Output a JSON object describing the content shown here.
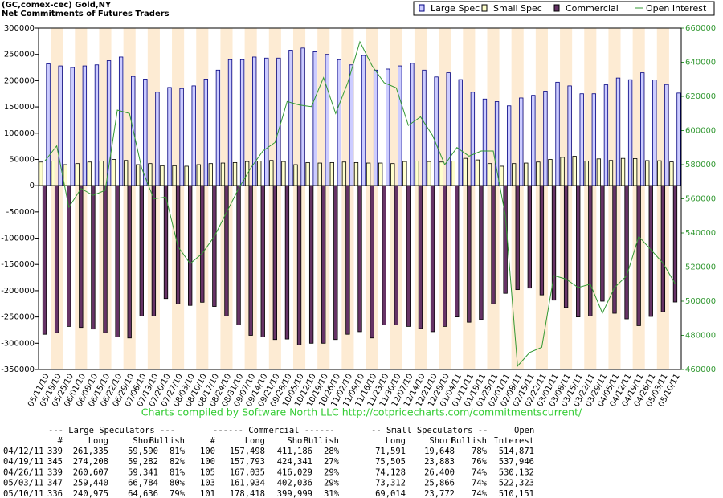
{
  "chart_data": {
    "type": "bar",
    "title": "(GC,comex-cec) Gold,NY",
    "subtitle": "Net Commitments of Futures Traders",
    "annotation": "Charts compiled by Software North LLC  http://cotpricecharts.com/commitmentscurrent/",
    "categories": [
      "05/11/10",
      "05/18/10",
      "05/25/10",
      "06/01/10",
      "06/08/10",
      "06/15/10",
      "06/22/10",
      "06/29/10",
      "07/06/10",
      "07/13/10",
      "07/20/10",
      "07/27/10",
      "08/03/10",
      "08/10/10",
      "08/17/10",
      "08/24/10",
      "08/31/10",
      "09/07/10",
      "09/14/10",
      "09/21/10",
      "09/28/10",
      "10/05/10",
      "10/12/10",
      "10/19/10",
      "10/26/10",
      "11/02/10",
      "11/09/10",
      "11/16/10",
      "11/23/10",
      "11/30/10",
      "12/07/10",
      "12/14/10",
      "12/21/10",
      "12/28/10",
      "01/04/11",
      "01/11/11",
      "01/18/11",
      "01/25/11",
      "02/01/11",
      "02/08/11",
      "02/15/11",
      "02/22/11",
      "03/01/11",
      "03/08/11",
      "03/15/11",
      "03/22/11",
      "03/29/11",
      "04/05/11",
      "04/12/11",
      "04/19/11",
      "04/26/11",
      "05/03/11",
      "05/10/11"
    ],
    "series": [
      {
        "name": "Large Spec",
        "color": "#ccccff",
        "edgecolor": "#000080",
        "values": [
          232000,
          228000,
          225000,
          228000,
          230000,
          238000,
          245000,
          208000,
          203000,
          178000,
          187000,
          185000,
          190000,
          203000,
          220000,
          240000,
          240000,
          245000,
          243000,
          243000,
          258000,
          262000,
          255000,
          250000,
          240000,
          230000,
          248000,
          220000,
          222000,
          228000,
          233000,
          220000,
          207000,
          215000,
          202000,
          178000,
          165000,
          160000,
          152000,
          167000,
          172000,
          180000,
          197000,
          190000,
          175000,
          175000,
          192000,
          205000,
          201745,
          214926,
          201266,
          192656,
          176339
        ]
      },
      {
        "name": "Small Spec",
        "color": "#ffffcc",
        "edgecolor": "#000000",
        "values": [
          45000,
          47000,
          40000,
          42000,
          45000,
          47000,
          50000,
          48000,
          40000,
          42000,
          38000,
          38000,
          37000,
          40000,
          42000,
          43000,
          44000,
          46000,
          47000,
          48000,
          46000,
          40000,
          44000,
          43000,
          44000,
          45000,
          44000,
          43000,
          43000,
          42000,
          46000,
          47000,
          46000,
          45000,
          47000,
          52000,
          49000,
          42000,
          37000,
          42000,
          43000,
          45000,
          50000,
          54000,
          56000,
          47000,
          51000,
          48000,
          51943,
          51622,
          47728,
          47446,
          45242
        ]
      },
      {
        "name": "Commercial",
        "color": "#663366",
        "edgecolor": "#000000",
        "values": [
          -283000,
          -280000,
          -268000,
          -270000,
          -273000,
          -280000,
          -288000,
          -290000,
          -248000,
          -248000,
          -215000,
          -225000,
          -228000,
          -222000,
          -230000,
          -248000,
          -265000,
          -285000,
          -288000,
          -293000,
          -292000,
          -303000,
          -300000,
          -300000,
          -293000,
          -283000,
          -278000,
          -290000,
          -265000,
          -265000,
          -268000,
          -272000,
          -278000,
          -268000,
          -250000,
          -260000,
          -255000,
          -225000,
          -205000,
          -198000,
          -195000,
          -208000,
          -218000,
          -232000,
          -250000,
          -248000,
          -220000,
          -243000,
          -253688,
          -266548,
          -248994,
          -240102,
          -221581
        ]
      },
      {
        "name": "Open Interest",
        "type": "line",
        "axis": "y2",
        "color": "#339933",
        "values": [
          582000,
          591000,
          555000,
          566000,
          562000,
          565000,
          612000,
          610000,
          578000,
          560000,
          561000,
          532000,
          522000,
          528000,
          538000,
          552000,
          566000,
          578000,
          588000,
          593000,
          617000,
          615000,
          614000,
          631000,
          610000,
          628000,
          652000,
          638000,
          628000,
          625000,
          603000,
          608000,
          597000,
          580000,
          590000,
          585000,
          588000,
          588000,
          550000,
          462000,
          470000,
          473000,
          515000,
          513000,
          508000,
          510000,
          493000,
          508000,
          514871,
          537946,
          530132,
          522323,
          510151
        ]
      }
    ],
    "ylim": [
      -350000,
      300000
    ],
    "yticks": [
      300000,
      250000,
      200000,
      150000,
      100000,
      50000,
      0,
      -50000,
      -100000,
      -150000,
      -200000,
      -250000,
      -300000,
      -350000
    ],
    "y2lim": [
      460000,
      660000
    ],
    "y2ticks": [
      660000,
      640000,
      620000,
      600000,
      580000,
      560000,
      540000,
      520000,
      500000,
      480000,
      460000
    ],
    "legend": "top-right",
    "band_color": "#fdebd3"
  },
  "table": {
    "group_headers": [
      "--- Large Speculators ---",
      "------ Commercial ------",
      "-- Small Speculators --",
      "Open"
    ],
    "columns": [
      "#",
      "Long",
      "Short",
      "Bullish",
      "#",
      "Long",
      "Short",
      "Bullish",
      "Long",
      "Short",
      "Bullish",
      "Interest"
    ],
    "rows": [
      [
        "04/12/11",
        "339",
        "261,335",
        "59,590",
        "81%",
        "100",
        "157,498",
        "411,186",
        "28%",
        "71,591",
        "19,648",
        "78%",
        "514,871"
      ],
      [
        "04/19/11",
        "345",
        "274,208",
        "59,282",
        "82%",
        "100",
        "157,793",
        "424,341",
        "27%",
        "75,505",
        "23,883",
        "76%",
        "537,946"
      ],
      [
        "04/26/11",
        "339",
        "260,607",
        "59,341",
        "81%",
        "105",
        "167,035",
        "416,029",
        "29%",
        "74,128",
        "26,400",
        "74%",
        "530,132"
      ],
      [
        "05/03/11",
        "347",
        "259,440",
        "66,784",
        "80%",
        "103",
        "161,934",
        "402,036",
        "29%",
        "73,312",
        "25,866",
        "74%",
        "522,323"
      ],
      [
        "05/10/11",
        "336",
        "240,975",
        "64,636",
        "79%",
        "101",
        "178,418",
        "399,999",
        "31%",
        "69,014",
        "23,772",
        "74%",
        "510,151"
      ]
    ]
  }
}
